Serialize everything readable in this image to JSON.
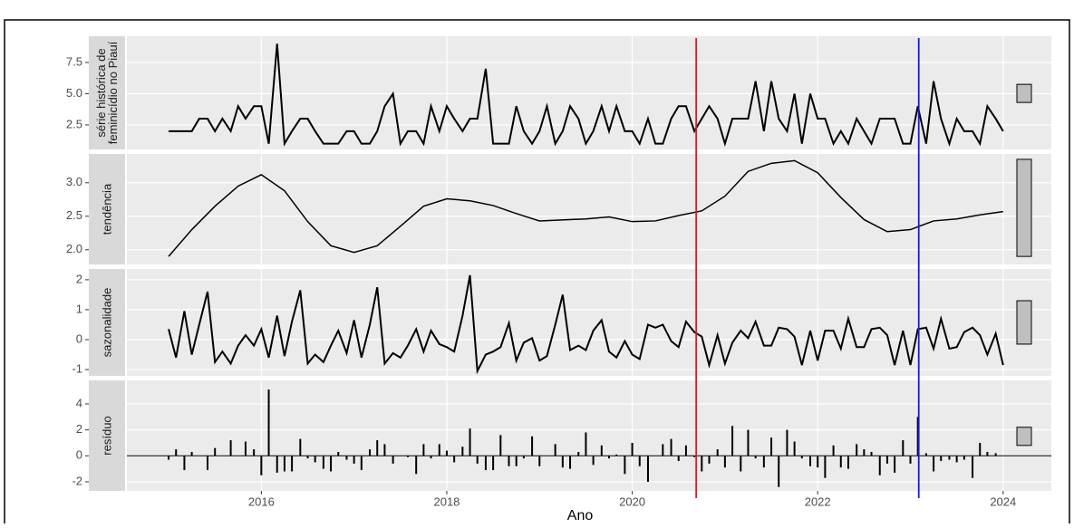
{
  "chart_data": [
    {
      "type": "line",
      "strip": [
        "série histórica de",
        "feminicídio no Piauí"
      ],
      "x": [
        2015,
        2015.08,
        2015.17,
        2015.25,
        2015.33,
        2015.42,
        2015.5,
        2015.58,
        2015.67,
        2015.75,
        2015.83,
        2015.92,
        2016,
        2016.08,
        2016.17,
        2016.25,
        2016.33,
        2016.42,
        2016.5,
        2016.58,
        2016.67,
        2016.75,
        2016.83,
        2016.92,
        2017,
        2017.08,
        2017.17,
        2017.25,
        2017.33,
        2017.42,
        2017.5,
        2017.58,
        2017.67,
        2017.75,
        2017.83,
        2017.92,
        2018,
        2018.08,
        2018.17,
        2018.25,
        2018.33,
        2018.42,
        2018.5,
        2018.58,
        2018.67,
        2018.75,
        2018.83,
        2018.92,
        2019,
        2019.08,
        2019.17,
        2019.25,
        2019.33,
        2019.42,
        2019.5,
        2019.58,
        2019.67,
        2019.75,
        2019.83,
        2019.92,
        2020,
        2020.08,
        2020.17,
        2020.25,
        2020.33,
        2020.42,
        2020.5,
        2020.58,
        2020.67,
        2020.75,
        2020.83,
        2020.92,
        2021,
        2021.08,
        2021.17,
        2021.25,
        2021.33,
        2021.42,
        2021.5,
        2021.58,
        2021.67,
        2021.75,
        2021.83,
        2021.92,
        2022,
        2022.08,
        2022.17,
        2022.25,
        2022.33,
        2022.42,
        2022.5,
        2022.58,
        2022.67,
        2022.75,
        2022.83,
        2022.92,
        2023,
        2023.08,
        2023.17,
        2023.25,
        2023.33,
        2023.42,
        2023.5,
        2023.58,
        2023.67,
        2023.75,
        2023.83,
        2023.92,
        2024
      ],
      "values": [
        2,
        2,
        2,
        2,
        3,
        3,
        2,
        3,
        2,
        4,
        3,
        4,
        4,
        1,
        9,
        1,
        2,
        3,
        3,
        2,
        1,
        1,
        1,
        2,
        2,
        1,
        1,
        2,
        4,
        5,
        1,
        2,
        2,
        1,
        4,
        2,
        4,
        3,
        2,
        3,
        3,
        7,
        1,
        1,
        1,
        4,
        2,
        1,
        2,
        4,
        1,
        2,
        4,
        3,
        1,
        2,
        4,
        2,
        4,
        2,
        2,
        1,
        3,
        1,
        1,
        3,
        4,
        4,
        2,
        3,
        4,
        3,
        1,
        3,
        3,
        3,
        6,
        2,
        6,
        3,
        2,
        5,
        1,
        5,
        3,
        3,
        1,
        2,
        1,
        3,
        2,
        1,
        3,
        3,
        3,
        1,
        1,
        4,
        1,
        6,
        3,
        1,
        3,
        2,
        2,
        1,
        4,
        3,
        2
      ],
      "xlim": [
        2014.55,
        2024.52
      ],
      "xticks": [
        2016,
        2018,
        2020,
        2022,
        2024
      ],
      "ylim": [
        0.54,
        9.6
      ],
      "yticks": [
        2.5,
        {
          "value": 5,
          "label": "5.0"
        },
        7.5
      ],
      "range_bar": [
        4.3,
        5.75
      ]
    },
    {
      "type": "line",
      "strip": [
        "tendência"
      ],
      "x": [
        2015,
        2015.25,
        2015.5,
        2015.75,
        2016,
        2016.25,
        2016.5,
        2016.75,
        2017,
        2017.25,
        2017.5,
        2017.75,
        2018,
        2018.25,
        2018.5,
        2018.75,
        2019,
        2019.5,
        2019.75,
        2020,
        2020.25,
        2020.5,
        2020.75,
        2021,
        2021.25,
        2021.5,
        2021.75,
        2022,
        2022.25,
        2022.5,
        2022.75,
        2023,
        2023.25,
        2023.5,
        2023.75,
        2024
      ],
      "values": [
        1.9,
        2.3,
        2.65,
        2.95,
        3.12,
        2.88,
        2.42,
        2.06,
        1.96,
        2.06,
        2.35,
        2.65,
        2.76,
        2.73,
        2.66,
        2.54,
        2.43,
        2.46,
        2.49,
        2.42,
        2.43,
        2.51,
        2.58,
        2.8,
        3.17,
        3.29,
        3.33,
        3.15,
        2.78,
        2.45,
        2.27,
        2.3,
        2.43,
        2.46,
        2.52,
        2.57
      ],
      "xlim": [
        2014.55,
        2024.52
      ],
      "xticks": [
        2016,
        2018,
        2020,
        2022,
        2024
      ],
      "ylim": [
        1.78,
        3.43
      ],
      "yticks": [
        {
          "value": 2,
          "label": "2.0"
        },
        2.5,
        {
          "value": 3,
          "label": "3.0"
        }
      ],
      "range_bar": [
        1.9,
        3.35
      ]
    },
    {
      "type": "line",
      "strip": [
        "sazonalidade"
      ],
      "x": [
        2015,
        2015.08,
        2015.17,
        2015.25,
        2015.33,
        2015.42,
        2015.5,
        2015.58,
        2015.67,
        2015.75,
        2015.83,
        2015.92,
        2016,
        2016.08,
        2016.17,
        2016.25,
        2016.33,
        2016.42,
        2016.5,
        2016.58,
        2016.67,
        2016.75,
        2016.83,
        2016.92,
        2017,
        2017.08,
        2017.17,
        2017.25,
        2017.33,
        2017.42,
        2017.5,
        2017.58,
        2017.67,
        2017.75,
        2017.83,
        2017.92,
        2018,
        2018.08,
        2018.17,
        2018.25,
        2018.33,
        2018.42,
        2018.5,
        2018.58,
        2018.67,
        2018.75,
        2018.83,
        2018.92,
        2019,
        2019.08,
        2019.17,
        2019.25,
        2019.33,
        2019.42,
        2019.5,
        2019.58,
        2019.67,
        2019.75,
        2019.83,
        2019.92,
        2020,
        2020.08,
        2020.17,
        2020.25,
        2020.33,
        2020.42,
        2020.5,
        2020.58,
        2020.67,
        2020.75,
        2020.83,
        2020.92,
        2021,
        2021.08,
        2021.17,
        2021.25,
        2021.33,
        2021.42,
        2021.5,
        2021.58,
        2021.67,
        2021.75,
        2021.83,
        2021.92,
        2022,
        2022.08,
        2022.17,
        2022.25,
        2022.33,
        2022.42,
        2022.5,
        2022.58,
        2022.67,
        2022.75,
        2022.83,
        2022.92,
        2023,
        2023.08,
        2023.17,
        2023.25,
        2023.33,
        2023.42,
        2023.5,
        2023.58,
        2023.67,
        2023.75,
        2023.83,
        2023.92,
        2024
      ],
      "values": [
        0.35,
        -0.6,
        0.95,
        -0.5,
        0.5,
        1.6,
        -0.75,
        -0.4,
        -0.8,
        -0.2,
        0.15,
        -0.2,
        0.35,
        -0.6,
        0.8,
        -0.55,
        0.6,
        1.65,
        -0.8,
        -0.5,
        -0.75,
        -0.2,
        0.3,
        -0.45,
        0.65,
        -0.6,
        0.5,
        1.75,
        -0.8,
        -0.45,
        -0.6,
        -0.2,
        0.35,
        -0.4,
        0.3,
        -0.15,
        -0.25,
        -0.4,
        0.8,
        2.15,
        -1.05,
        -0.5,
        -0.4,
        -0.25,
        0.55,
        -0.7,
        -0.1,
        0.05,
        -0.7,
        -0.55,
        0.5,
        1.5,
        -0.35,
        -0.2,
        -0.35,
        0.3,
        0.65,
        -0.4,
        -0.6,
        -0.05,
        -0.5,
        -0.65,
        0.5,
        0.4,
        0.5,
        -0.05,
        -0.25,
        0.6,
        0.25,
        0.1,
        -0.85,
        0.15,
        -0.8,
        -0.1,
        0.3,
        0.05,
        0.6,
        -0.2,
        -0.2,
        0.4,
        0.35,
        0.1,
        -0.85,
        0.3,
        -0.7,
        0.3,
        0.3,
        -0.3,
        0.7,
        -0.25,
        -0.25,
        0.35,
        0.4,
        0.15,
        -0.85,
        0.3,
        -0.85,
        0.35,
        0.4,
        -0.3,
        0.7,
        -0.3,
        -0.25,
        0.25,
        0.4,
        0.15,
        -0.5,
        0.2,
        -0.85
      ],
      "xlim": [
        2014.55,
        2024.52
      ],
      "xticks": [
        2016,
        2018,
        2020,
        2022,
        2024
      ],
      "ylim": [
        -1.21,
        2.36
      ],
      "yticks": [
        -1,
        0,
        1,
        2
      ],
      "range_bar": [
        -0.15,
        1.3
      ]
    },
    {
      "type": "bar",
      "strip": [
        "resíduo"
      ],
      "xlabel": "Ano",
      "x": [
        2015,
        2015.08,
        2015.17,
        2015.25,
        2015.33,
        2015.42,
        2015.5,
        2015.58,
        2015.67,
        2015.75,
        2015.83,
        2015.92,
        2016,
        2016.08,
        2016.17,
        2016.25,
        2016.33,
        2016.42,
        2016.5,
        2016.58,
        2016.67,
        2016.75,
        2016.83,
        2016.92,
        2017,
        2017.08,
        2017.17,
        2017.25,
        2017.33,
        2017.42,
        2017.5,
        2017.58,
        2017.67,
        2017.75,
        2017.83,
        2017.92,
        2018,
        2018.08,
        2018.17,
        2018.25,
        2018.33,
        2018.42,
        2018.5,
        2018.58,
        2018.67,
        2018.75,
        2018.83,
        2018.92,
        2019,
        2019.08,
        2019.17,
        2019.25,
        2019.33,
        2019.42,
        2019.5,
        2019.58,
        2019.67,
        2019.75,
        2019.83,
        2019.92,
        2020,
        2020.08,
        2020.17,
        2020.25,
        2020.33,
        2020.42,
        2020.5,
        2020.58,
        2020.67,
        2020.75,
        2020.83,
        2020.92,
        2021,
        2021.08,
        2021.17,
        2021.25,
        2021.33,
        2021.42,
        2021.5,
        2021.58,
        2021.67,
        2021.75,
        2021.83,
        2021.92,
        2022,
        2022.08,
        2022.17,
        2022.25,
        2022.33,
        2022.42,
        2022.5,
        2022.58,
        2022.67,
        2022.75,
        2022.83,
        2022.92,
        2023,
        2023.08,
        2023.17,
        2023.25,
        2023.33,
        2023.42,
        2023.5,
        2023.58,
        2023.67,
        2023.75,
        2023.83,
        2023.92,
        2024
      ],
      "values": [
        -0.3,
        0.5,
        -1.1,
        0.3,
        0,
        -1.1,
        0.6,
        0,
        1.2,
        0,
        1.1,
        0.5,
        -1.5,
        5.1,
        -1.3,
        -1.2,
        -1.2,
        1.3,
        -0.2,
        -0.5,
        -1.0,
        -1.2,
        0.3,
        -0.3,
        -0.6,
        -1.1,
        0.5,
        1.2,
        0.9,
        -0.6,
        0,
        -0.1,
        -1.4,
        0.9,
        -0.2,
        0.9,
        0.4,
        -0.5,
        0.7,
        2.1,
        -0.6,
        -1.1,
        -1.1,
        1.6,
        -0.8,
        -0.8,
        -0.2,
        1.5,
        -0.8,
        0,
        0.9,
        -0.9,
        -1.0,
        0.3,
        1.8,
        -0.7,
        0.8,
        -0.2,
        0.1,
        -1.4,
        1.0,
        -0.8,
        -2.0,
        0,
        0.9,
        1.3,
        -0.4,
        0.8,
        -0.1,
        -1.2,
        -0.6,
        0.5,
        -0.9,
        2.3,
        -1.2,
        2.0,
        -0.2,
        -0.9,
        1.4,
        -2.4,
        2.0,
        1.1,
        -0.2,
        -0.8,
        -0.9,
        -1.7,
        0.8,
        -0.9,
        -1.0,
        0.9,
        0.5,
        0.3,
        -1.5,
        -0.6,
        -1.3,
        1.2,
        -0.6,
        3.0,
        0.2,
        -1.2,
        -0.4,
        -0.3,
        -0.5,
        -0.3,
        -1.7,
        1.0,
        0.3,
        0.2,
        0
      ],
      "xlim": [
        2014.55,
        2024.52
      ],
      "xticks": [
        2016,
        2018,
        2020,
        2022,
        2024
      ],
      "ylim": [
        -2.7,
        5.81
      ],
      "yticks": [
        -2,
        0,
        2,
        4
      ],
      "range_bar": [
        0.8,
        2.2
      ]
    }
  ],
  "vlines": [
    {
      "value": 2020.69,
      "color": "#e8141b"
    },
    {
      "value": 2023.09,
      "color": "#1a1ae0"
    }
  ]
}
